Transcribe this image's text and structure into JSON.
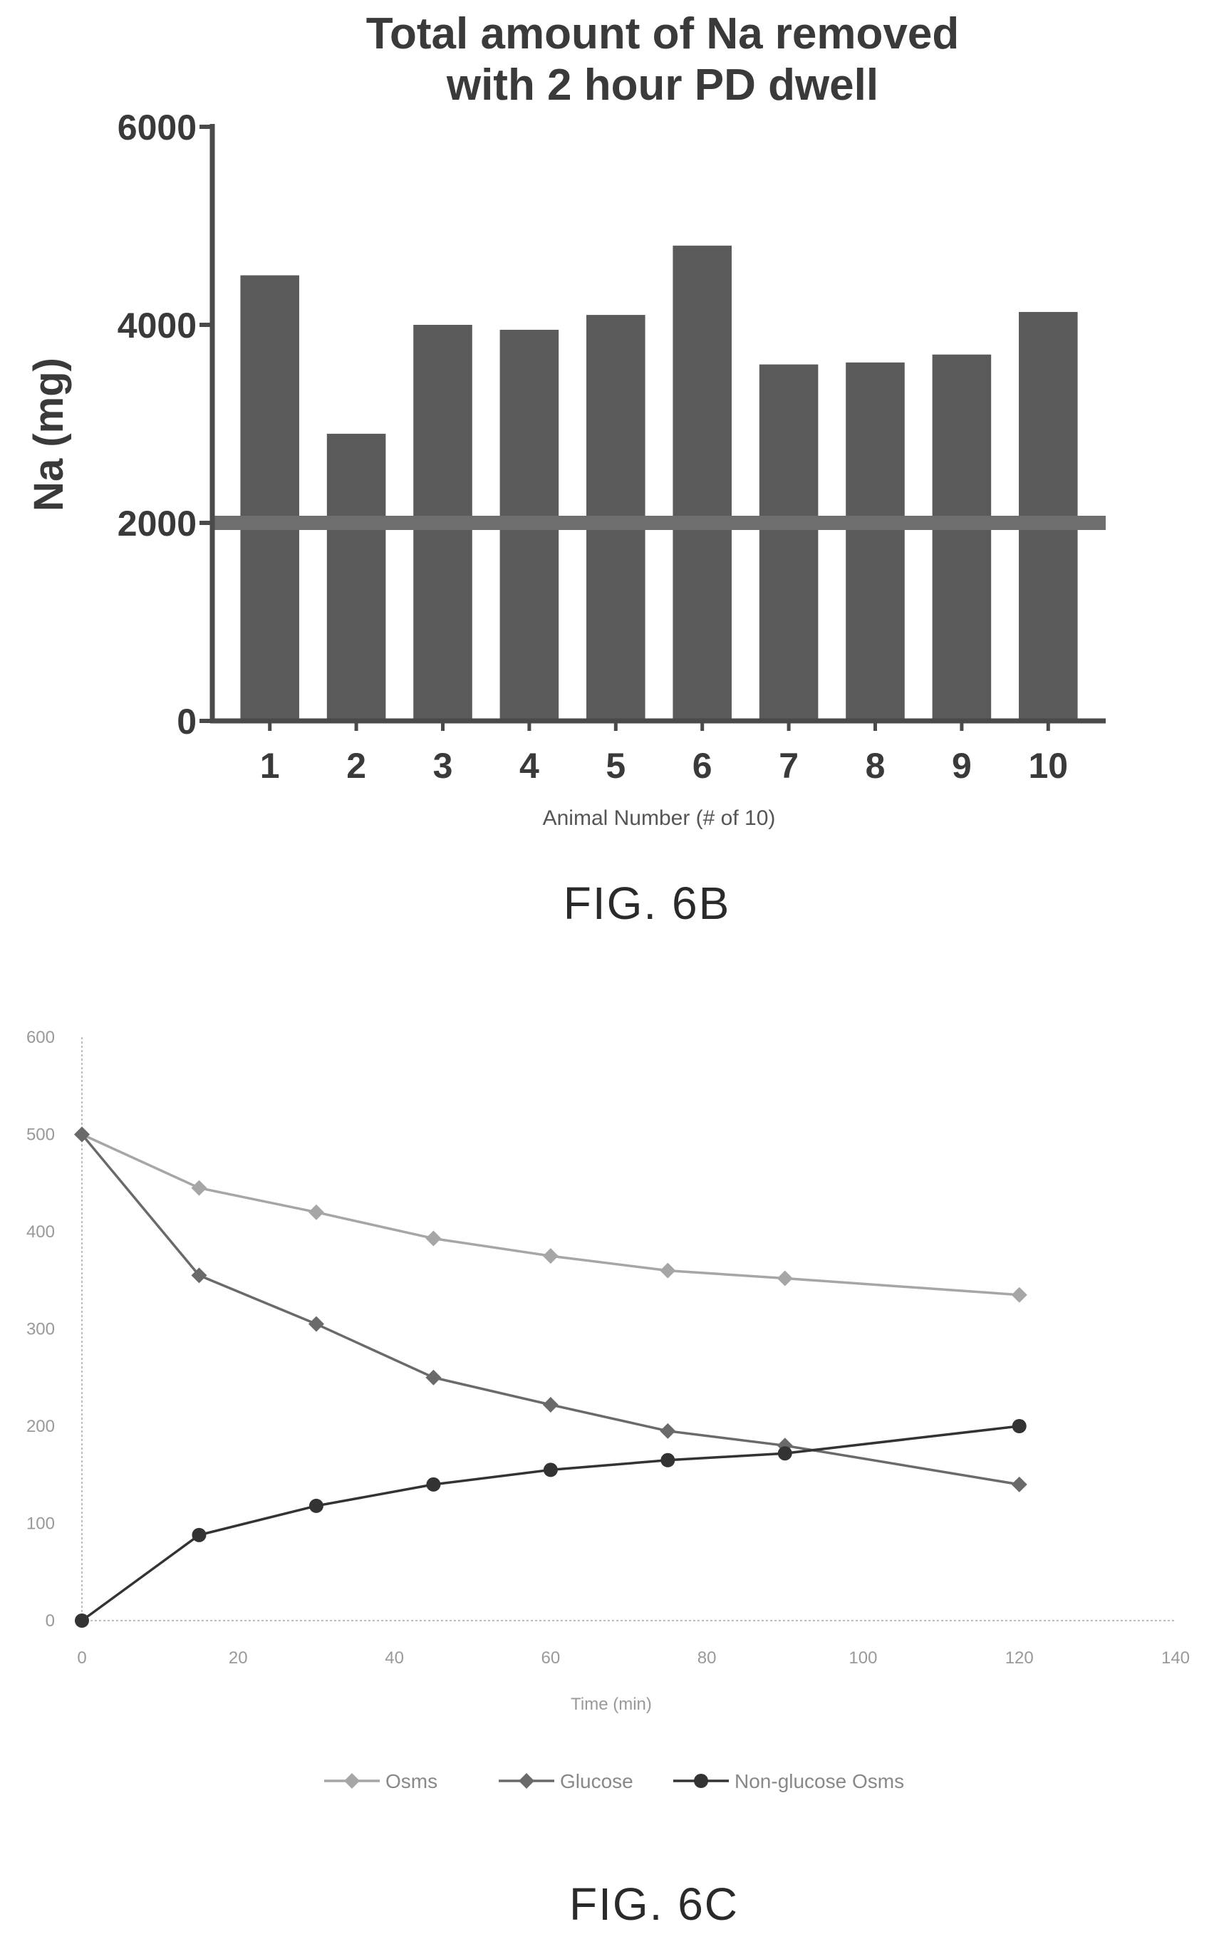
{
  "chart_data": [
    {
      "type": "bar",
      "title_line1": "Total amount of Na removed",
      "title_line2": "with 2 hour PD dwell",
      "xlabel": "Animal Number (# of 10)",
      "ylabel": "Na (mg)",
      "ylim": [
        0,
        6000
      ],
      "yticks": [
        "0",
        "2000",
        "4000",
        "6000"
      ],
      "categories": [
        "1",
        "2",
        "3",
        "4",
        "5",
        "6",
        "7",
        "8",
        "9",
        "10"
      ],
      "values": [
        4500,
        2900,
        4000,
        3950,
        4100,
        4800,
        3600,
        3620,
        3700,
        4130
      ],
      "reference_line": 2000,
      "bar_color": "#5a5a5a",
      "caption": "FIG. 6B"
    },
    {
      "type": "line",
      "xlabel": "Time (min)",
      "ylabel": "",
      "xlim": [
        0,
        140
      ],
      "ylim": [
        0,
        600
      ],
      "xticks": [
        "0",
        "20",
        "40",
        "60",
        "80",
        "100",
        "120",
        "140"
      ],
      "yticks": [
        "0",
        "100",
        "200",
        "300",
        "400",
        "500",
        "600"
      ],
      "x": [
        0,
        15,
        30,
        45,
        60,
        75,
        90,
        120
      ],
      "series": [
        {
          "name": "Osms",
          "color": "#a6a6a6",
          "marker": "diamond",
          "values": [
            500,
            445,
            420,
            393,
            375,
            360,
            352,
            335
          ]
        },
        {
          "name": "Glucose",
          "color": "#6a6a6a",
          "marker": "diamond",
          "values": [
            500,
            355,
            305,
            250,
            222,
            195,
            180,
            140
          ]
        },
        {
          "name": "Non-glucose Osms",
          "color": "#333333",
          "marker": "circle",
          "values": [
            0,
            88,
            118,
            140,
            155,
            165,
            172,
            200
          ]
        }
      ],
      "legend_position": "bottom",
      "caption": "FIG. 6C"
    }
  ]
}
